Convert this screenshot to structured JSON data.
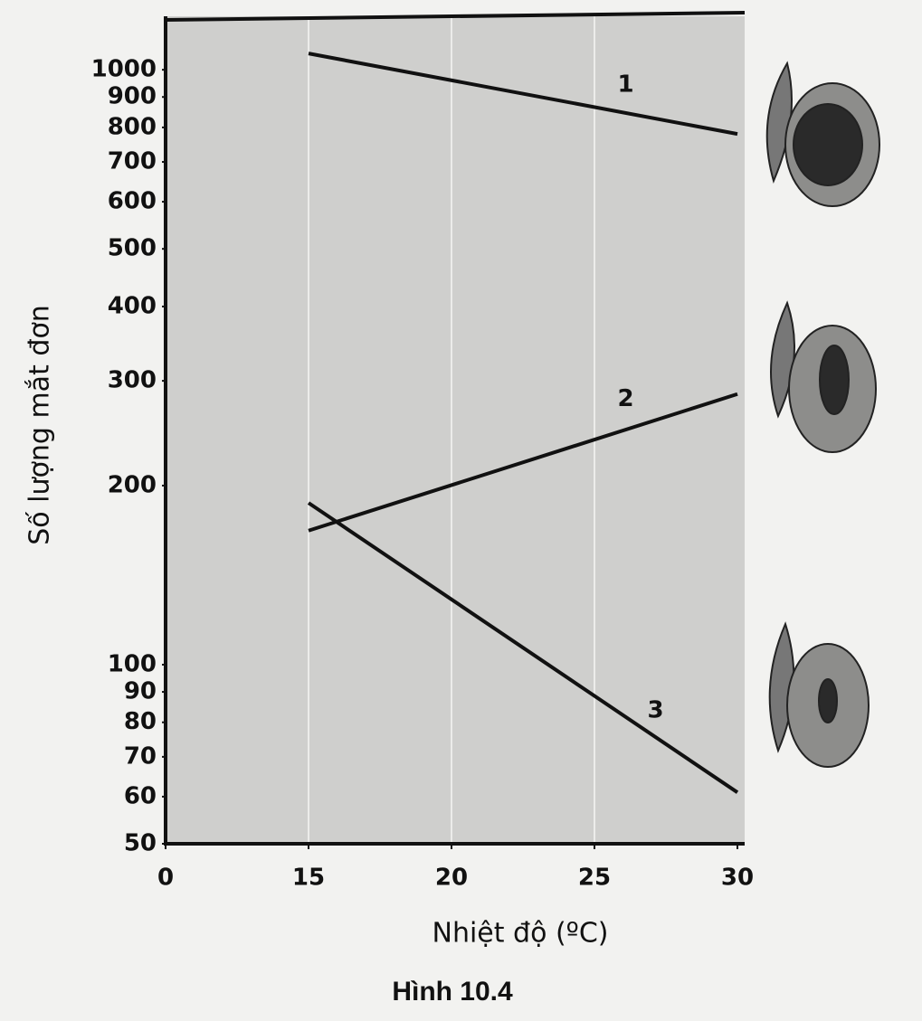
{
  "chart_data": {
    "type": "line",
    "caption": "Hình 10.4",
    "x_label": "Nhiệt độ (ºC)",
    "y_label": "Số lượng mắt đơn",
    "xticks": [
      0,
      15,
      20,
      25,
      30
    ],
    "ylim": [
      50,
      1230
    ],
    "log_y": true,
    "yticks": [
      50,
      60,
      70,
      80,
      90,
      100,
      200,
      300,
      400,
      500,
      600,
      700,
      800,
      900,
      1000
    ],
    "grid": true,
    "series": [
      {
        "name": "1",
        "color": "#111111",
        "x": [
          15,
          30
        ],
        "values": [
          1065,
          780
        ]
      },
      {
        "name": "2",
        "color": "#111111",
        "x": [
          15,
          30
        ],
        "values": [
          168,
          285
        ]
      },
      {
        "name": "3",
        "color": "#111111",
        "x": [
          15,
          30
        ],
        "values": [
          187,
          61
        ]
      }
    ]
  }
}
